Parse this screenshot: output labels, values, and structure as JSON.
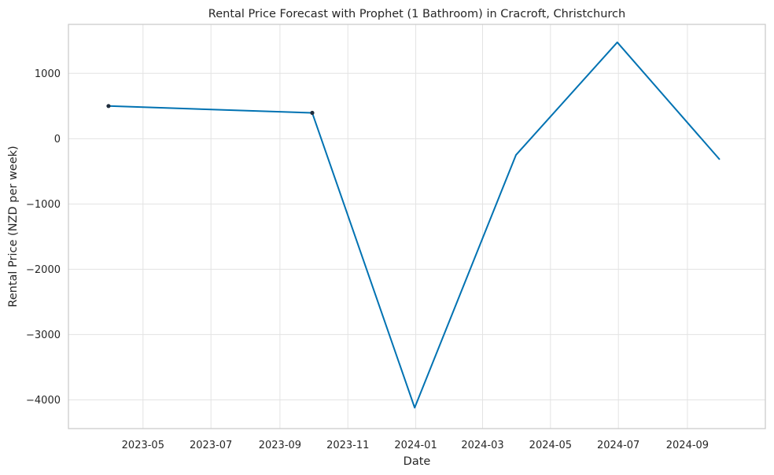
{
  "chart_data": {
    "type": "line",
    "title": "Rental Price Forecast with Prophet (1 Bathroom) in Cracroft, Christchurch",
    "xlabel": "Date",
    "ylabel": "Rental Price (NZD per week)",
    "x_ticks": [
      "2023-05",
      "2023-07",
      "2023-09",
      "2023-11",
      "2024-01",
      "2024-03",
      "2024-05",
      "2024-07",
      "2024-09"
    ],
    "y_ticks": [
      1000,
      0,
      -1000,
      -2000,
      -3000,
      -4000
    ],
    "y_tick_labels": [
      "1000",
      "0",
      "−1000",
      "−2000",
      "−3000",
      "−4000"
    ],
    "xlim": [
      "2023-02-23",
      "2024-11-10"
    ],
    "ylim": [
      -4440,
      1750
    ],
    "grid": true,
    "series": [
      {
        "kind": "forecast-line",
        "color": "#0072b2",
        "points": [
          {
            "x": "2023-03-31",
            "y": 500
          },
          {
            "x": "2023-09-30",
            "y": 395
          },
          {
            "x": "2023-12-31",
            "y": -4120
          },
          {
            "x": "2024-03-31",
            "y": -250
          },
          {
            "x": "2024-06-30",
            "y": 1475
          },
          {
            "x": "2024-09-30",
            "y": -320
          }
        ]
      },
      {
        "kind": "observed-points",
        "color": "#1f2d3d",
        "points": [
          {
            "x": "2023-03-31",
            "y": 500
          },
          {
            "x": "2023-09-30",
            "y": 395
          }
        ]
      }
    ]
  }
}
